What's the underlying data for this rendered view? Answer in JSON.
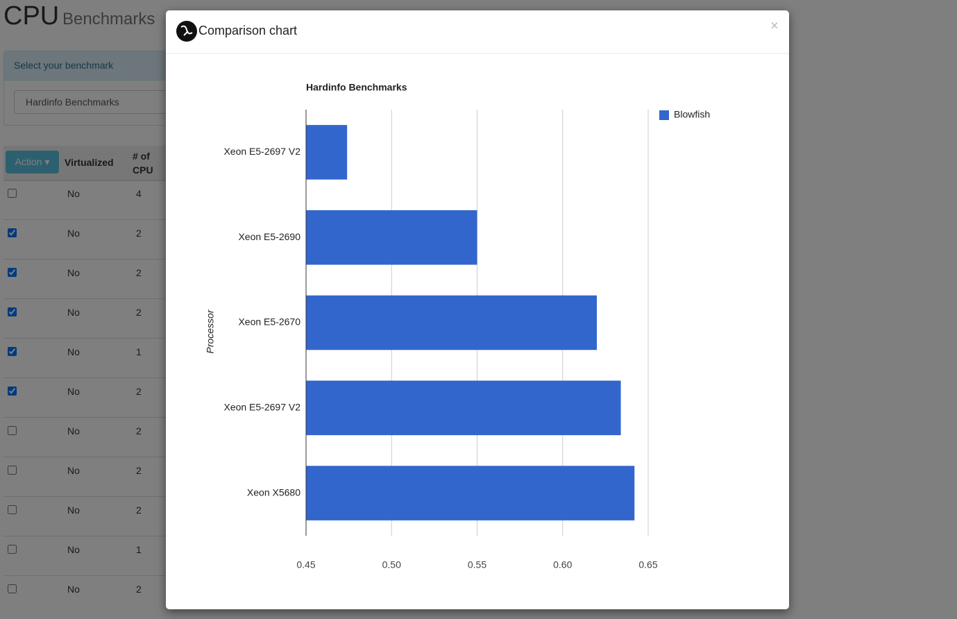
{
  "page": {
    "title": "CPU",
    "subtitle": "Benchmarks",
    "panel_heading": "Select your benchmark",
    "select_value": "Hardinfo Benchmarks",
    "action": "Action",
    "columns": [
      "Virtualized",
      "# of CPU"
    ],
    "rows": [
      {
        "checked": false,
        "virtualized": "No",
        "cpus": 4
      },
      {
        "checked": true,
        "virtualized": "No",
        "cpus": 2
      },
      {
        "checked": true,
        "virtualized": "No",
        "cpus": 2
      },
      {
        "checked": true,
        "virtualized": "No",
        "cpus": 2
      },
      {
        "checked": true,
        "virtualized": "No",
        "cpus": 1
      },
      {
        "checked": true,
        "virtualized": "No",
        "cpus": 2
      },
      {
        "checked": false,
        "virtualized": "No",
        "cpus": 2
      },
      {
        "checked": false,
        "virtualized": "No",
        "cpus": 2
      },
      {
        "checked": false,
        "virtualized": "No",
        "cpus": 2
      },
      {
        "checked": false,
        "virtualized": "No",
        "cpus": 1
      },
      {
        "checked": false,
        "virtualized": "No",
        "cpus": 2
      }
    ]
  },
  "modal": {
    "title": "Comparison chart",
    "close": "×"
  },
  "chart_data": {
    "type": "bar",
    "orientation": "horizontal",
    "title": "Hardinfo Benchmarks",
    "y_label": "Processor",
    "categories": [
      "Xeon E5-2697 V2",
      "Xeon E5-2690",
      "Xeon E5-2670",
      "Xeon E5-2697 V2",
      "Xeon X5680"
    ],
    "series": [
      {
        "name": "Blowfish",
        "color": "#3366cc",
        "values": [
          0.474,
          0.55,
          0.62,
          0.634,
          0.642
        ]
      }
    ],
    "xlim": [
      0.45,
      0.65
    ],
    "xticks": [
      0.45,
      {
        "value": 0.5,
        "label": "0.50"
      },
      0.55,
      {
        "value": 0.6,
        "label": "0.60"
      },
      0.65
    ],
    "grid": true,
    "legend": "right"
  }
}
